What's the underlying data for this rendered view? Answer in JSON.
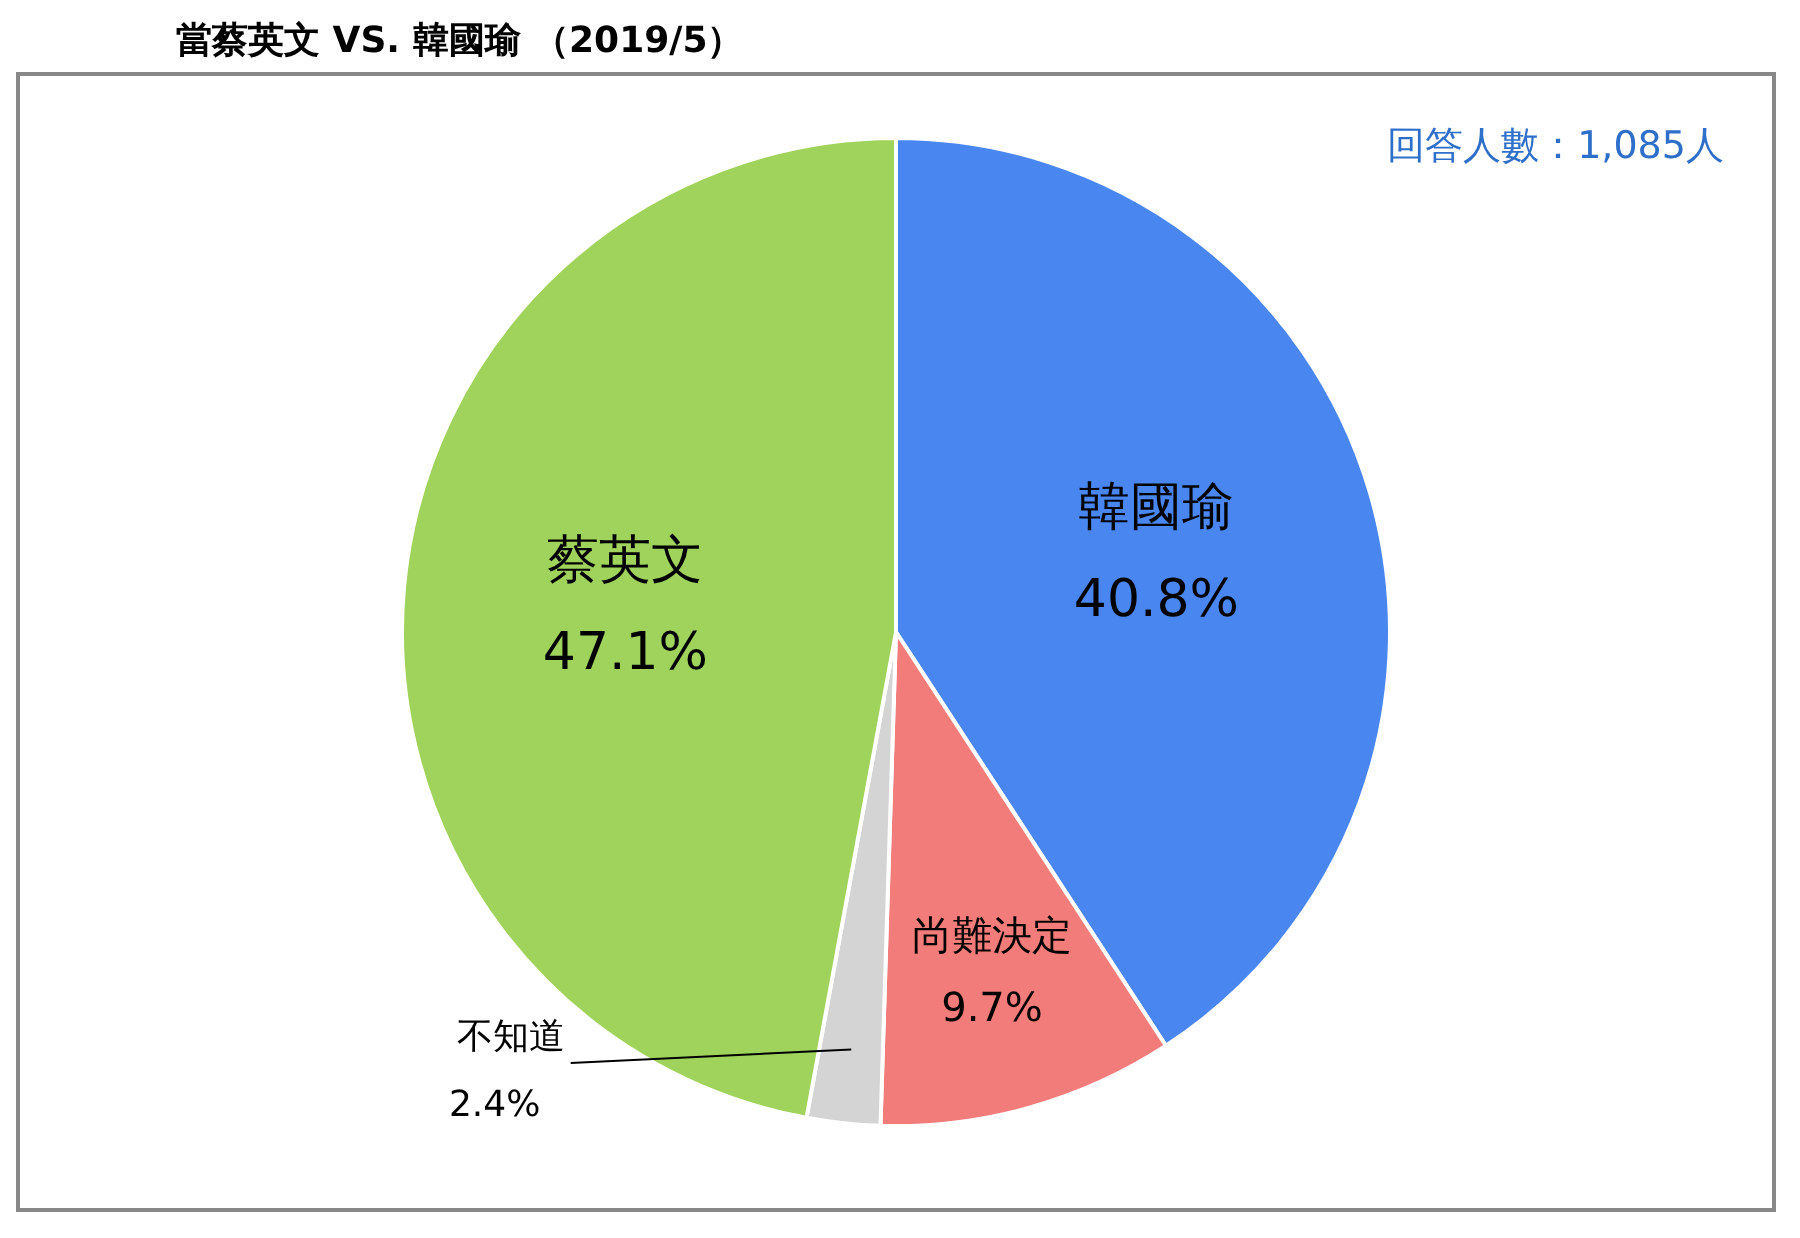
{
  "chart_data": {
    "type": "pie",
    "title": "當蔡英文 VS. 韓國瑜 （2019/5）",
    "annotations": [
      "回答人數：1,085人"
    ],
    "categories": [
      "韓國瑜",
      "尚難決定",
      "不知道",
      "蔡英文"
    ],
    "values": [
      40.8,
      9.7,
      2.4,
      47.1
    ],
    "value_labels": [
      "40.8%",
      "9.7%",
      "2.4%",
      "47.1%"
    ],
    "colors": [
      "#4a86f0",
      "#f27c7a",
      "#d4d4d4",
      "#9fd35c"
    ],
    "legend": false
  }
}
